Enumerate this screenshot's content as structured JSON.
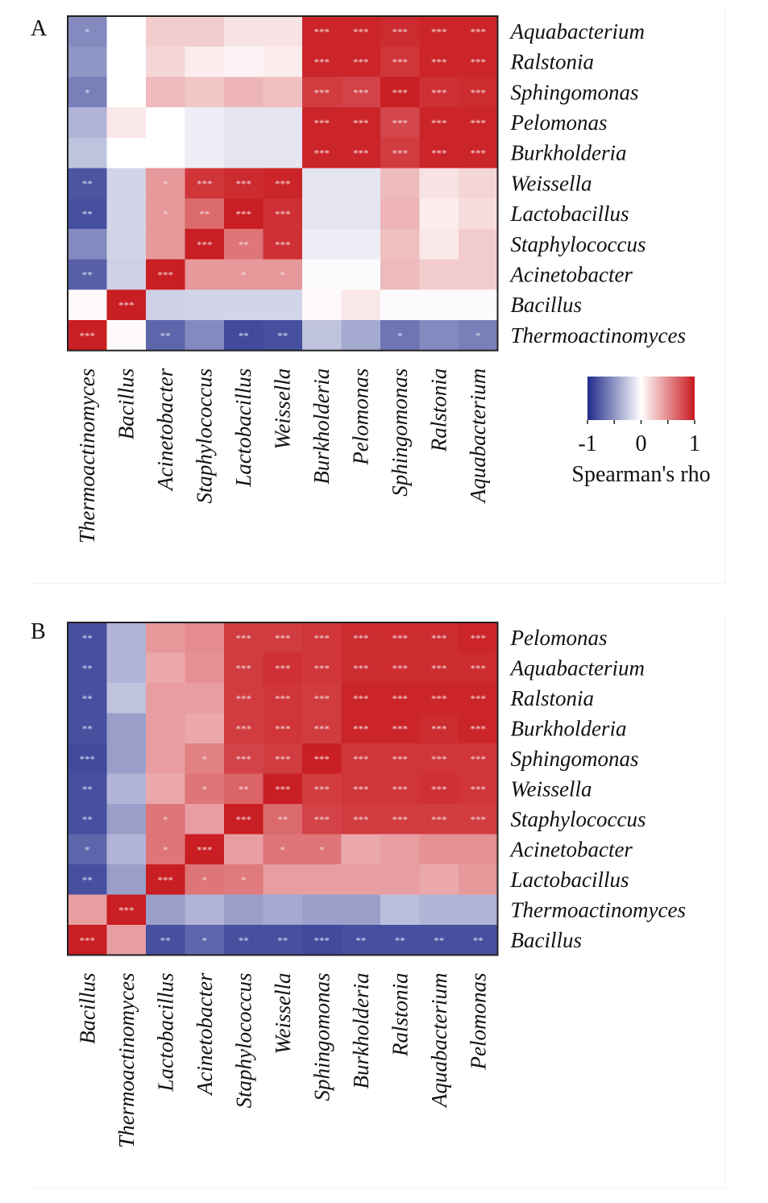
{
  "chart_data": [
    {
      "type": "heatmap",
      "panel_label": "A",
      "title": "",
      "rows": [
        "Aquabacterium",
        "Ralstonia",
        "Sphingomonas",
        "Pelomonas",
        "Burkholderia",
        "Weissella",
        "Lactobacillus",
        "Staphylococcus",
        "Acinetobacter",
        "Bacillus",
        "Thermoactinomyces"
      ],
      "columns": [
        "Thermoactinomyces",
        "Bacillus",
        "Acinetobacter",
        "Staphylococcus",
        "Lactobacillus",
        "Weissella",
        "Burkholderia",
        "Pelomonas",
        "Sphingomonas",
        "Ralstonia",
        "Aquabacterium"
      ],
      "values": [
        [
          -0.55,
          0.0,
          0.22,
          0.22,
          0.12,
          0.12,
          0.95,
          0.95,
          0.92,
          0.95,
          0.95
        ],
        [
          -0.5,
          0.0,
          0.18,
          0.08,
          0.05,
          0.08,
          0.95,
          0.95,
          0.88,
          0.95,
          0.95
        ],
        [
          -0.6,
          0.0,
          0.3,
          0.25,
          0.32,
          0.28,
          0.85,
          0.82,
          0.98,
          0.9,
          0.92
        ],
        [
          -0.35,
          0.1,
          0.0,
          -0.08,
          -0.12,
          -0.12,
          0.95,
          0.95,
          0.8,
          0.95,
          0.95
        ],
        [
          -0.28,
          0.0,
          0.0,
          -0.08,
          -0.12,
          -0.12,
          0.95,
          0.95,
          0.85,
          0.95,
          0.95
        ],
        [
          -0.8,
          -0.2,
          0.45,
          0.88,
          0.92,
          0.95,
          -0.12,
          -0.12,
          0.3,
          0.12,
          0.18
        ],
        [
          -0.82,
          -0.2,
          0.45,
          0.65,
          0.98,
          0.9,
          -0.12,
          -0.12,
          0.32,
          0.08,
          0.15
        ],
        [
          -0.55,
          -0.2,
          0.45,
          0.98,
          0.6,
          0.9,
          -0.08,
          -0.08,
          0.28,
          0.1,
          0.22
        ],
        [
          -0.75,
          -0.22,
          0.98,
          0.45,
          0.45,
          0.45,
          -0.02,
          -0.02,
          0.3,
          0.22,
          0.22
        ],
        [
          0.02,
          0.98,
          -0.22,
          -0.2,
          -0.2,
          -0.2,
          0.02,
          0.1,
          -0.02,
          -0.02,
          -0.02
        ],
        [
          0.98,
          0.02,
          -0.72,
          -0.55,
          -0.85,
          -0.82,
          -0.28,
          -0.4,
          -0.65,
          -0.55,
          -0.6
        ]
      ],
      "significance": [
        [
          "*",
          "",
          "",
          "",
          "",
          "",
          "***",
          "***",
          "***",
          "***",
          "***"
        ],
        [
          "",
          "",
          "",
          "",
          "",
          "",
          "***",
          "***",
          "***",
          "***",
          "***"
        ],
        [
          "*",
          "",
          "",
          "",
          "",
          "",
          "***",
          "***",
          "***",
          "***",
          "***"
        ],
        [
          "",
          "",
          "",
          "",
          "",
          "",
          "***",
          "***",
          "***",
          "***",
          "***"
        ],
        [
          "",
          "",
          "",
          "",
          "",
          "",
          "***",
          "***",
          "***",
          "***",
          "***"
        ],
        [
          "**",
          "",
          "*",
          "***",
          "***",
          "***",
          "",
          "",
          "",
          "",
          ""
        ],
        [
          "**",
          "",
          "*",
          "**",
          "***",
          "***",
          "",
          "",
          "",
          "",
          ""
        ],
        [
          "",
          "",
          "",
          "***",
          "**",
          "***",
          "",
          "",
          "",
          "",
          ""
        ],
        [
          "**",
          "",
          "***",
          "",
          "*",
          "*",
          "",
          "",
          "",
          "",
          ""
        ],
        [
          "",
          "***",
          "",
          "",
          "",
          "",
          "",
          "",
          "",
          "",
          ""
        ],
        [
          "***",
          "",
          "**",
          "",
          "**",
          "**",
          "",
          "",
          "*",
          "",
          "*"
        ]
      ],
      "vlim": [
        -1,
        1
      ]
    },
    {
      "type": "heatmap",
      "panel_label": "B",
      "title": "",
      "rows": [
        "Pelomonas",
        "Aquabacterium",
        "Ralstonia",
        "Burkholderia",
        "Sphingomonas",
        "Weissella",
        "Staphylococcus",
        "Acinetobacter",
        "Lactobacillus",
        "Thermoactinomyces",
        "Bacillus"
      ],
      "columns": [
        "Bacillus",
        "Thermoactinomyces",
        "Lactobacillus",
        "Acinetobacter",
        "Staphylococcus",
        "Weissella",
        "Sphingomonas",
        "Burkholderia",
        "Ralstonia",
        "Aquabacterium",
        "Pelomonas"
      ],
      "values": [
        [
          -0.82,
          -0.35,
          0.45,
          0.5,
          0.85,
          0.85,
          0.88,
          0.92,
          0.92,
          0.92,
          0.95
        ],
        [
          -0.82,
          -0.35,
          0.38,
          0.48,
          0.85,
          0.9,
          0.88,
          0.92,
          0.92,
          0.92,
          0.92
        ],
        [
          -0.82,
          -0.28,
          0.42,
          0.42,
          0.85,
          0.88,
          0.85,
          0.95,
          0.95,
          0.95,
          0.95
        ],
        [
          -0.82,
          -0.45,
          0.42,
          0.38,
          0.85,
          0.88,
          0.85,
          0.95,
          0.95,
          0.92,
          0.95
        ],
        [
          -0.85,
          -0.45,
          0.42,
          0.55,
          0.82,
          0.85,
          0.98,
          0.88,
          0.88,
          0.88,
          0.88
        ],
        [
          -0.82,
          -0.35,
          0.38,
          0.6,
          0.68,
          0.98,
          0.85,
          0.88,
          0.88,
          0.9,
          0.88
        ],
        [
          -0.82,
          -0.45,
          0.6,
          0.42,
          0.98,
          0.65,
          0.82,
          0.85,
          0.85,
          0.85,
          0.85
        ],
        [
          -0.72,
          -0.35,
          0.6,
          0.98,
          0.42,
          0.6,
          0.6,
          0.38,
          0.42,
          0.48,
          0.48
        ],
        [
          -0.82,
          -0.45,
          0.98,
          0.6,
          0.58,
          0.42,
          0.42,
          0.42,
          0.42,
          0.38,
          0.45
        ],
        [
          0.42,
          0.98,
          -0.45,
          -0.35,
          -0.45,
          -0.4,
          -0.45,
          -0.45,
          -0.3,
          -0.35,
          -0.35
        ],
        [
          0.98,
          0.42,
          -0.82,
          -0.72,
          -0.82,
          -0.82,
          -0.85,
          -0.82,
          -0.82,
          -0.82,
          -0.82
        ]
      ],
      "significance": [
        [
          "**",
          "",
          "",
          "",
          "***",
          "***",
          "***",
          "***",
          "***",
          "***",
          "***"
        ],
        [
          "**",
          "",
          "",
          "",
          "***",
          "***",
          "***",
          "***",
          "***",
          "***",
          "***"
        ],
        [
          "**",
          "",
          "",
          "",
          "***",
          "***",
          "***",
          "***",
          "***",
          "***",
          "***"
        ],
        [
          "**",
          "",
          "",
          "",
          "***",
          "***",
          "***",
          "***",
          "***",
          "***",
          "***"
        ],
        [
          "***",
          "",
          "",
          "*",
          "***",
          "***",
          "***",
          "***",
          "***",
          "***",
          "***"
        ],
        [
          "**",
          "",
          "",
          "*",
          "**",
          "***",
          "***",
          "***",
          "***",
          "***",
          "***"
        ],
        [
          "**",
          "",
          "*",
          "",
          "***",
          "**",
          "***",
          "***",
          "***",
          "***",
          "***"
        ],
        [
          "*",
          "",
          "*",
          "***",
          "",
          "*",
          "*",
          "",
          "",
          "",
          ""
        ],
        [
          "**",
          "",
          "***",
          "*",
          "*",
          "",
          "",
          "",
          "",
          "",
          ""
        ],
        [
          "",
          "***",
          "",
          "",
          "",
          "",
          "",
          "",
          "",
          "",
          ""
        ],
        [
          "***",
          "",
          "**",
          "*",
          "**",
          "**",
          "***",
          "**",
          "**",
          "**",
          "**"
        ]
      ],
      "vlim": [
        -1,
        1
      ]
    }
  ],
  "legend": {
    "title": "Spearman's rho",
    "ticks": [
      "-1",
      "0",
      "1"
    ],
    "colors": {
      "low": "#1f2a8a",
      "mid": "#ffffff",
      "high": "#c8191e"
    }
  }
}
